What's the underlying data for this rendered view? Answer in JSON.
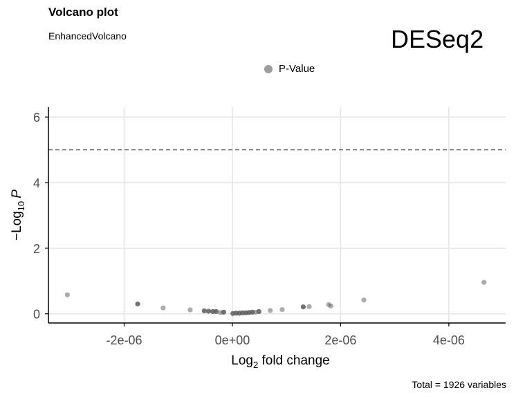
{
  "header": {
    "title": "Volcano plot",
    "subtitle": "EnhancedVolcano",
    "tag": "DESeq2"
  },
  "legend": {
    "label": "P-Value",
    "color": "#9e9e9e"
  },
  "caption": "Total = 1926 variables",
  "colors": {
    "point": "#595959",
    "grid": "#e6e6e6",
    "axis": "#000000",
    "threshold": "#555555"
  },
  "chart_data": {
    "type": "scatter",
    "xlabel_main": "Log",
    "xlabel_sub": "2",
    "xlabel_rest": " fold change",
    "ylabel_prefix": "−Log",
    "ylabel_sub": "10",
    "ylabel_italic": "P",
    "xlim": [
      -3.4e-06,
      5.05e-06
    ],
    "ylim": [
      -0.28,
      6.3
    ],
    "x_ticks": [
      -2e-06,
      0,
      2e-06,
      4e-06
    ],
    "x_tick_labels": [
      "-2e-06",
      "0e+00",
      "2e-06",
      "4e-06"
    ],
    "y_ticks": [
      0,
      2,
      4,
      6
    ],
    "y_tick_labels": [
      "0",
      "2",
      "4",
      "6"
    ],
    "threshold_y": 5.0,
    "grid": true,
    "series": [
      {
        "name": "P-Value",
        "points": [
          {
            "x": -3.05e-06,
            "y": 0.58,
            "a": 0.5
          },
          {
            "x": -1.75e-06,
            "y": 0.3,
            "a": 0.85
          },
          {
            "x": -1.28e-06,
            "y": 0.18,
            "a": 0.5
          },
          {
            "x": -7.8e-07,
            "y": 0.12,
            "a": 0.5
          },
          {
            "x": -5.2e-07,
            "y": 0.09,
            "a": 0.85
          },
          {
            "x": -4.4e-07,
            "y": 0.08,
            "a": 0.85
          },
          {
            "x": -3.6e-07,
            "y": 0.07,
            "a": 0.85
          },
          {
            "x": -3e-07,
            "y": 0.07,
            "a": 0.85
          },
          {
            "x": -2.2e-07,
            "y": 0.04,
            "a": 0.5
          },
          {
            "x": -1.6e-07,
            "y": 0.05,
            "a": 0.85
          },
          {
            "x": 1e-08,
            "y": 0.01,
            "a": 0.85
          },
          {
            "x": 7e-08,
            "y": 0.02,
            "a": 0.85
          },
          {
            "x": 1.3e-07,
            "y": 0.02,
            "a": 0.85
          },
          {
            "x": 1.9e-07,
            "y": 0.03,
            "a": 0.85
          },
          {
            "x": 2.5e-07,
            "y": 0.03,
            "a": 0.85
          },
          {
            "x": 3.1e-07,
            "y": 0.04,
            "a": 0.85
          },
          {
            "x": 3.7e-07,
            "y": 0.05,
            "a": 0.85
          },
          {
            "x": 4.3e-07,
            "y": 0.05,
            "a": 0.5
          },
          {
            "x": 4.9e-07,
            "y": 0.07,
            "a": 0.85
          },
          {
            "x": 7e-07,
            "y": 0.1,
            "a": 0.5
          },
          {
            "x": 9.2e-07,
            "y": 0.13,
            "a": 0.5
          },
          {
            "x": 1.31e-06,
            "y": 0.21,
            "a": 0.85
          },
          {
            "x": 1.42e-06,
            "y": 0.22,
            "a": 0.5
          },
          {
            "x": 1.78e-06,
            "y": 0.28,
            "a": 0.5
          },
          {
            "x": 1.82e-06,
            "y": 0.24,
            "a": 0.5
          },
          {
            "x": 2.43e-06,
            "y": 0.42,
            "a": 0.5
          },
          {
            "x": 4.65e-06,
            "y": 0.96,
            "a": 0.5
          }
        ]
      }
    ]
  }
}
